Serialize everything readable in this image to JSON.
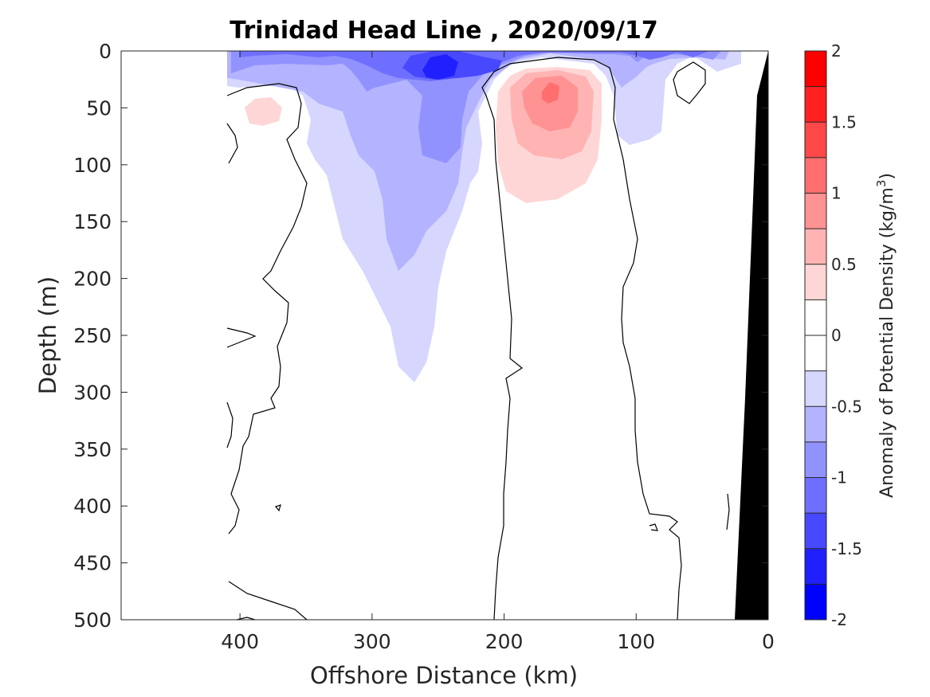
{
  "chart_data": {
    "type": "contour",
    "title": "Trinidad Head Line , 2020/09/17",
    "xlabel": "Offshore Distance (km)",
    "ylabel": "Depth (m)",
    "xlim": [
      490,
      0
    ],
    "ylim": [
      0,
      500
    ],
    "y_reversed": true,
    "x_reversed": true,
    "xticks": [
      400,
      300,
      200,
      100,
      0
    ],
    "yticks": [
      0,
      50,
      100,
      150,
      200,
      250,
      300,
      350,
      400,
      450,
      500
    ],
    "colorbar": {
      "label_main": "Anomaly of Potential Density (kg/m",
      "label_sup": "3",
      "label_close": ")",
      "range": [
        -2,
        2
      ],
      "ticks": [
        "2",
        "1.5",
        "1",
        "0.5",
        "0",
        "-0.5",
        "-1",
        "-1.5",
        "-2"
      ],
      "levels": [
        -2,
        -1.75,
        -1.5,
        -1.25,
        -1,
        -0.75,
        -0.5,
        -0.25,
        0,
        0.25,
        0.5,
        0.75,
        1,
        1.25,
        1.5,
        1.75,
        2
      ],
      "colors": [
        "#0000ff",
        "#2020ff",
        "#4848ff",
        "#6f6fff",
        "#9292ff",
        "#b3b3ff",
        "#d6d6ff",
        "#ffffff",
        "#ffffff",
        "#ffd6d6",
        "#ffb3b3",
        "#ff9292",
        "#ff6f6f",
        "#ff4848",
        "#ff2020",
        "#ff0000"
      ]
    },
    "data_extent_km": [
      410,
      0
    ],
    "features": [
      {
        "name": "low-density-plume",
        "anomaly": -0.25,
        "x_km": [
          350,
          210
        ],
        "depth_m": [
          0,
          285
        ],
        "peak_x_km": 250,
        "peak_depth_m": 15,
        "peak_anomaly": -1.5
      },
      {
        "name": "surface-low-layer",
        "anomaly": -0.5,
        "x_km": [
          410,
          25
        ],
        "depth_m": [
          0,
          80
        ]
      },
      {
        "name": "high-density-eddy",
        "anomaly": 0.25,
        "x_km": [
          225,
          135
        ],
        "depth_m": [
          20,
          135
        ],
        "peak_x_km": 170,
        "peak_depth_m": 35,
        "peak_anomaly": 1.0
      },
      {
        "name": "small-high-patch",
        "anomaly": 0.25,
        "x_km": [
          400,
          370
        ],
        "depth_m": [
          40,
          65
        ]
      }
    ],
    "zero_contours": "black lines",
    "bathymetry": {
      "color": "#000000",
      "x_km_at_surface": 0,
      "x_km_at_500m": 34
    }
  }
}
